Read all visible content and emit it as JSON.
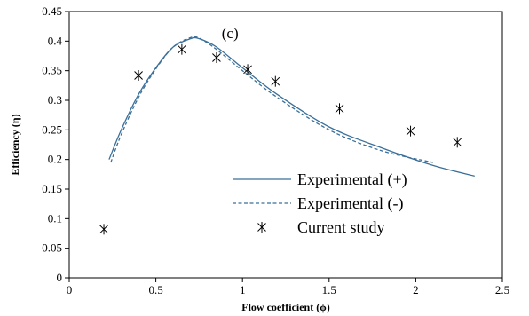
{
  "chart_data": {
    "type": "line",
    "annotation": "(c)",
    "xlabel": "Flow coefficient (ϕ)",
    "ylabel": "Efficiency (η)",
    "xlim": [
      0,
      2.5
    ],
    "ylim": [
      0,
      0.45
    ],
    "x_ticks": [
      "0",
      "0.5",
      "1",
      "1.5",
      "2",
      "2.5"
    ],
    "y_ticks": [
      "0",
      "0.05",
      "0.1",
      "0.15",
      "0.2",
      "0.25",
      "0.3",
      "0.35",
      "0.4",
      "0.45"
    ],
    "grid": false,
    "legend_position": "bottom-right",
    "series": [
      {
        "name": "Experimental (+)",
        "style": "solid",
        "color": "#3a6f99",
        "x": [
          0.23,
          0.3,
          0.4,
          0.5,
          0.6,
          0.7,
          0.75,
          0.85,
          1.0,
          1.2,
          1.5,
          1.8,
          2.1,
          2.34
        ],
        "y": [
          0.2,
          0.25,
          0.31,
          0.355,
          0.39,
          0.404,
          0.404,
          0.39,
          0.355,
          0.31,
          0.255,
          0.22,
          0.19,
          0.172
        ]
      },
      {
        "name": "Experimental (-)",
        "style": "dashed",
        "color": "#3a6f99",
        "x": [
          0.24,
          0.3,
          0.4,
          0.5,
          0.6,
          0.7,
          0.75,
          0.85,
          1.0,
          1.2,
          1.5,
          1.8,
          2.1
        ],
        "y": [
          0.195,
          0.242,
          0.305,
          0.353,
          0.39,
          0.406,
          0.405,
          0.386,
          0.35,
          0.305,
          0.25,
          0.215,
          0.195
        ]
      },
      {
        "name": "Current study",
        "style": "marker",
        "color": "#000000",
        "x": [
          0.2,
          0.4,
          0.65,
          0.85,
          1.03,
          1.19,
          1.56,
          1.97,
          2.24
        ],
        "y": [
          0.082,
          0.342,
          0.386,
          0.372,
          0.352,
          0.332,
          0.286,
          0.248,
          0.229
        ]
      }
    ]
  }
}
